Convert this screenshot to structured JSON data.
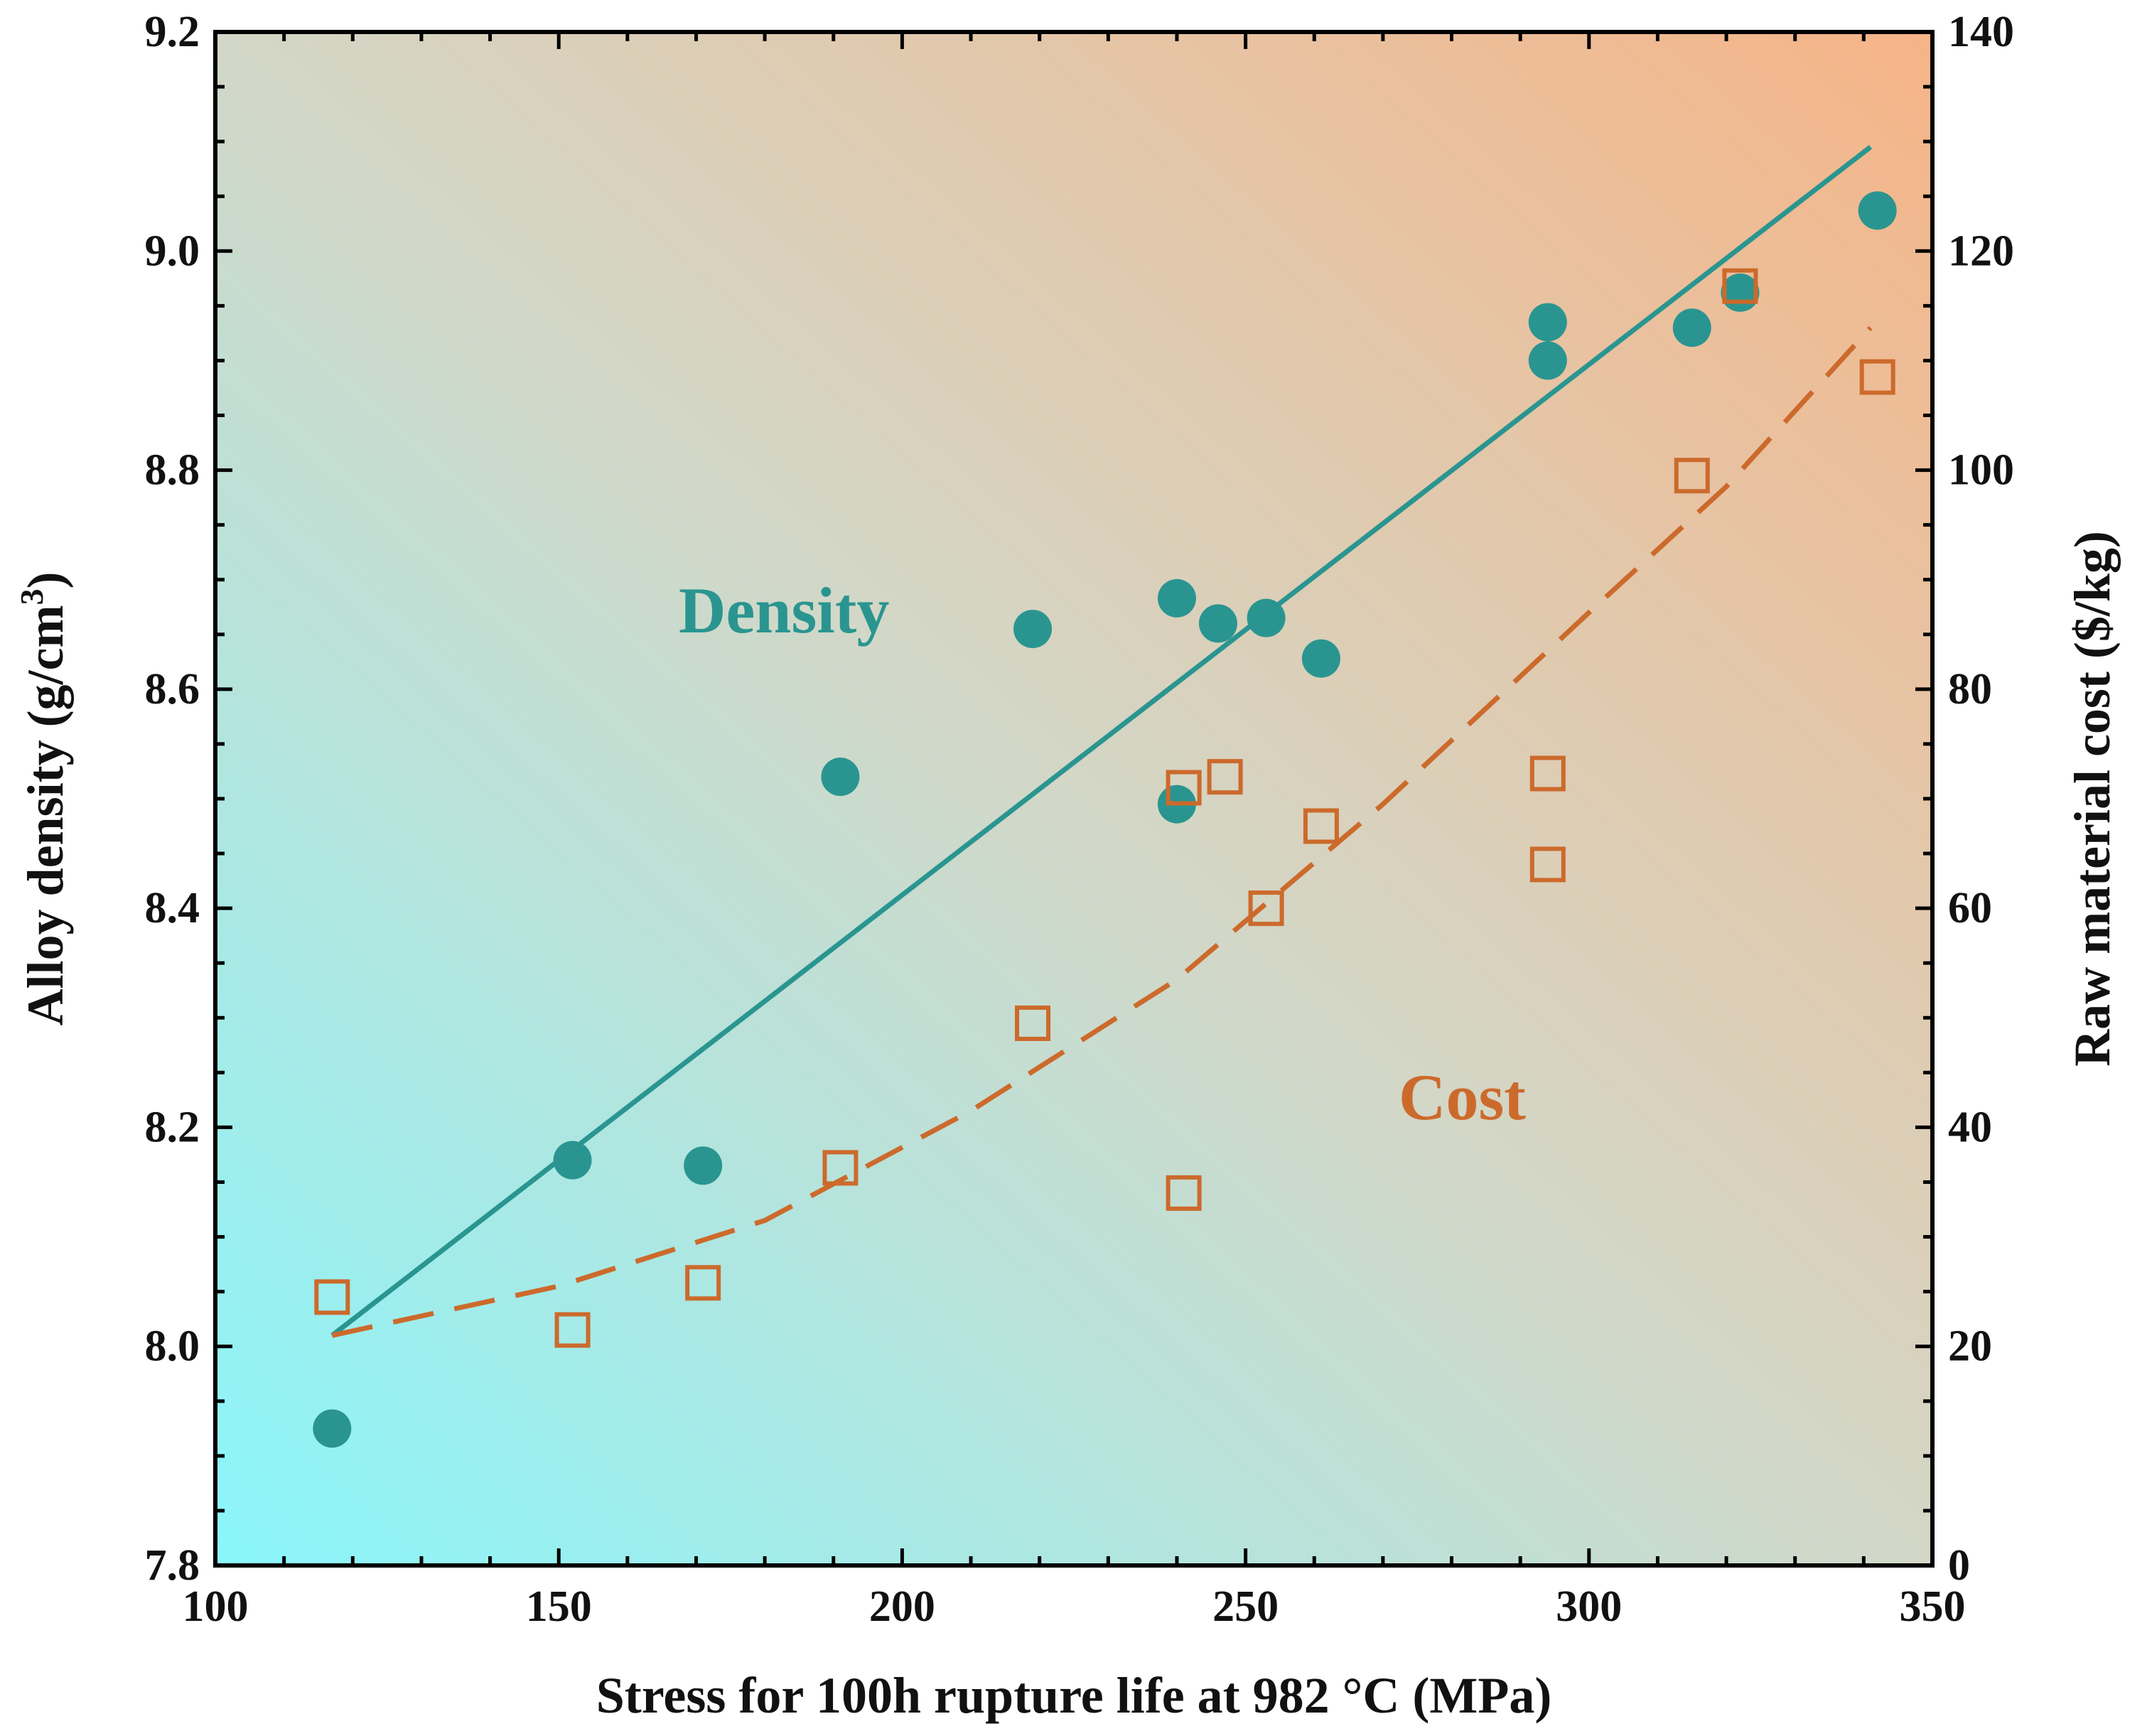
{
  "chart_data": {
    "type": "scatter",
    "xlabel": "Stress for 100h rupture life at 982 °C (MPa)",
    "ylabel_left_text": "Alloy density (g/cm",
    "ylabel_left_sup": "3",
    "ylabel_left_close": ")",
    "ylabel_right": "Raw material cost ($/kg)",
    "xlim": [
      100,
      350
    ],
    "ylim_left": [
      7.8,
      9.2
    ],
    "ylim_right": [
      0,
      140
    ],
    "x_ticks": [
      100,
      150,
      200,
      250,
      300,
      350
    ],
    "x_tick_labels": [
      "100",
      "150",
      "200",
      "250",
      "300",
      "350"
    ],
    "y_left_ticks": [
      7.8,
      8.0,
      8.2,
      8.4,
      8.6,
      8.8,
      9.0,
      9.2
    ],
    "y_left_tick_labels": [
      "7.8",
      "8.0",
      "8.2",
      "8.4",
      "8.6",
      "8.8",
      "9.0",
      "9.2"
    ],
    "y_right_ticks": [
      0,
      20,
      40,
      60,
      80,
      100,
      120,
      140
    ],
    "y_right_tick_labels": [
      "0",
      "20",
      "40",
      "60",
      "80",
      "100",
      "120",
      "140"
    ],
    "annotations": [
      {
        "text": "Density",
        "color": "#2a9590"
      },
      {
        "text": "Cost",
        "color": "#cc6a2c"
      }
    ],
    "background_gradient": [
      "#8af6fb",
      "#f6b487"
    ],
    "series": [
      {
        "name": "Density",
        "axis": "left",
        "marker": "filled-circle",
        "color": "#2a9590",
        "points": [
          {
            "x": 117,
            "y": 7.925
          },
          {
            "x": 152,
            "y": 8.17
          },
          {
            "x": 171,
            "y": 8.165
          },
          {
            "x": 191,
            "y": 8.52
          },
          {
            "x": 219,
            "y": 8.655
          },
          {
            "x": 240,
            "y": 8.683
          },
          {
            "x": 240,
            "y": 8.495
          },
          {
            "x": 246,
            "y": 8.66
          },
          {
            "x": 253,
            "y": 8.665
          },
          {
            "x": 261,
            "y": 8.628
          },
          {
            "x": 294,
            "y": 8.935
          },
          {
            "x": 294,
            "y": 8.9
          },
          {
            "x": 315,
            "y": 8.93
          },
          {
            "x": 322,
            "y": 8.962
          },
          {
            "x": 342,
            "y": 9.037
          }
        ]
      },
      {
        "name": "Cost",
        "axis": "right",
        "marker": "open-square",
        "color": "#cc6a2c",
        "points": [
          {
            "x": 117,
            "y": 24.5
          },
          {
            "x": 152,
            "y": 21.5
          },
          {
            "x": 171,
            "y": 25.8
          },
          {
            "x": 191,
            "y": 36.3
          },
          {
            "x": 219,
            "y": 49.5
          },
          {
            "x": 241,
            "y": 71.0
          },
          {
            "x": 241,
            "y": 34.0
          },
          {
            "x": 247,
            "y": 72.0
          },
          {
            "x": 253,
            "y": 60.0
          },
          {
            "x": 261,
            "y": 67.5
          },
          {
            "x": 294,
            "y": 72.3
          },
          {
            "x": 294,
            "y": 64.0
          },
          {
            "x": 315,
            "y": 99.5
          },
          {
            "x": 322,
            "y": 116.8
          },
          {
            "x": 342,
            "y": 108.5
          }
        ]
      }
    ],
    "fits": [
      {
        "name": "Density linear fit",
        "axis": "left",
        "style": "solid",
        "color": "#2a9590",
        "points": [
          {
            "x": 117,
            "y": 8.01
          },
          {
            "x": 341,
            "y": 9.095
          }
        ]
      },
      {
        "name": "Cost quadratic fit",
        "axis": "right",
        "style": "dashed",
        "color": "#cc6a2c",
        "points": [
          {
            "x": 117,
            "y": 21.0
          },
          {
            "x": 150,
            "y": 25.5
          },
          {
            "x": 180,
            "y": 31.5
          },
          {
            "x": 210,
            "y": 41.5
          },
          {
            "x": 240,
            "y": 53.5
          },
          {
            "x": 270,
            "y": 69.5
          },
          {
            "x": 300,
            "y": 87.0
          },
          {
            "x": 320,
            "y": 98.5
          },
          {
            "x": 341,
            "y": 113.0
          }
        ]
      }
    ]
  }
}
